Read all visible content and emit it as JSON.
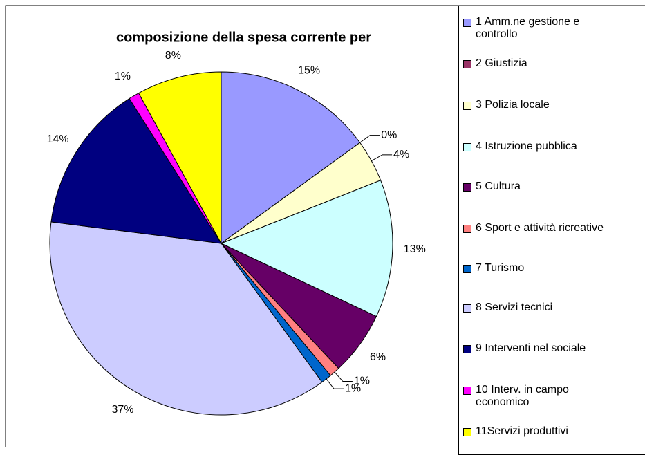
{
  "chart_data": {
    "type": "pie",
    "title": "composizione della spesa corrente per",
    "categories": [
      "1 Amm.ne gestione e controllo",
      "2 Giustizia",
      "3 Polizia locale",
      "4 Istruzione pubblica",
      "5 Cultura",
      "6 Sport e attività ricreative",
      "7 Turismo",
      "8 Servizi tecnici",
      "9 Interventi nel sociale",
      "10 Interv. in campo economico",
      "11Servizi produttivi"
    ],
    "values": [
      15,
      0,
      4,
      13,
      6,
      1,
      1,
      37,
      14,
      1,
      8
    ],
    "value_labels": [
      "15%",
      "0%",
      "4%",
      "13%",
      "6%",
      "1%",
      "1%",
      "37%",
      "14%",
      "1%",
      "8%"
    ],
    "colors": [
      "#9999ff",
      "#993366",
      "#ffffcc",
      "#ccffff",
      "#660066",
      "#ff8080",
      "#0066cc",
      "#ccccff",
      "#000080",
      "#ff00ff",
      "#ffff00"
    ],
    "legend": "right"
  }
}
